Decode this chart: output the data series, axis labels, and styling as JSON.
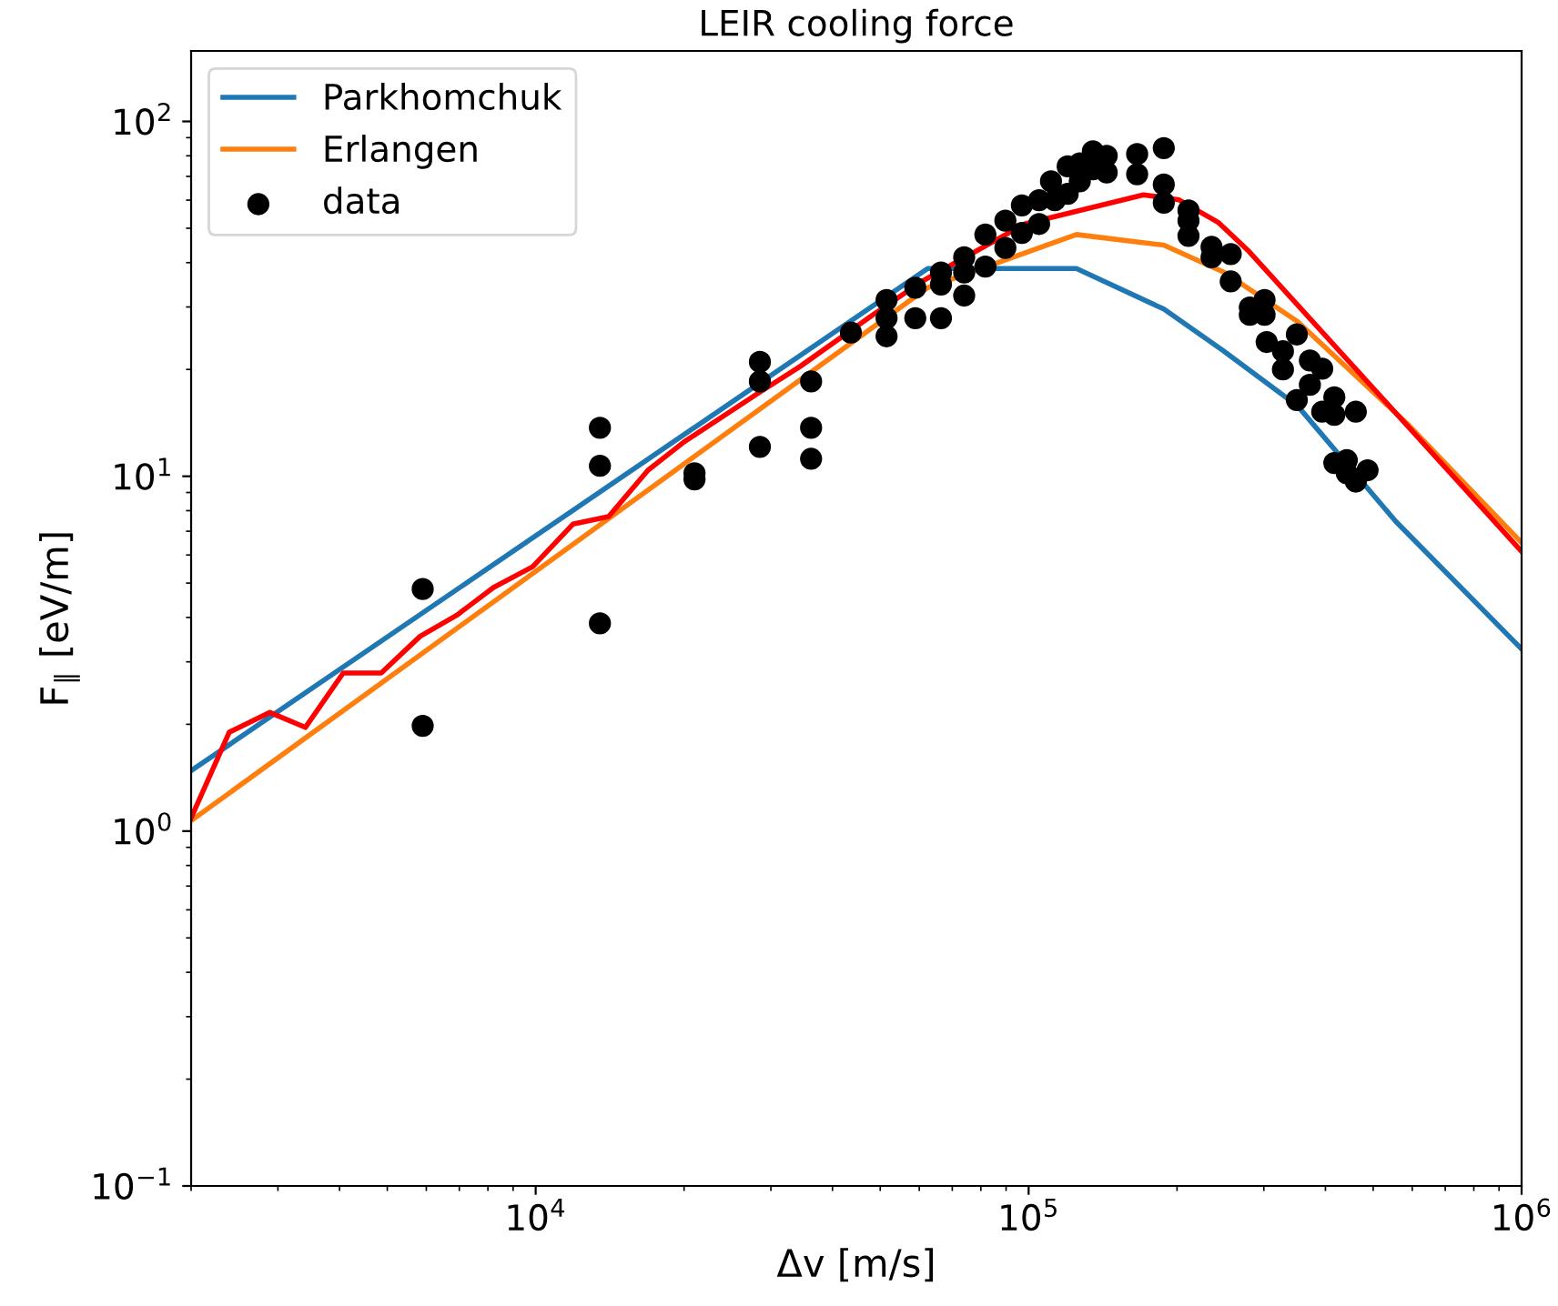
{
  "chart_data": {
    "type": "line",
    "title": "LEIR cooling force",
    "xlabel": "Δv [m/s]",
    "ylabel": "F$_{∥}$ [eV/m]",
    "log": "xy",
    "xlim": [
      2000,
      1000000
    ],
    "ylim": [
      0.1,
      158
    ],
    "xticks": [
      {
        "value": 10000,
        "label": "10$^{4}$"
      },
      {
        "value": 100000,
        "label": "10$^{5}$"
      },
      {
        "value": 1000000,
        "label": "10$^{6}$"
      }
    ],
    "yticks": [
      {
        "value": 0.1,
        "label": "10$^{−1}$"
      },
      {
        "value": 1,
        "label": "10$^{0}$"
      },
      {
        "value": 10,
        "label": "10$^{1}$"
      },
      {
        "value": 100,
        "label": "10$^{2}$"
      }
    ],
    "legend": "top left",
    "grid": false,
    "series": [
      {
        "name": "Parkhomchuk",
        "color": "#1f77b4",
        "x": [
          2000,
          62400,
          125000,
          188000,
          248000,
          351000,
          556000,
          1000000
        ],
        "values": [
          1.48,
          38.5,
          38.5,
          29.6,
          22.6,
          15.8,
          7.45,
          3.26
        ]
      },
      {
        "name": "Erlangen",
        "color": "#ff7f0e",
        "x": [
          2000,
          62400,
          125000,
          188000,
          250000,
          351000,
          585000,
          1000000
        ],
        "values": [
          1.07,
          34,
          48,
          44.8,
          37.5,
          27.3,
          14.1,
          6.5
        ]
      },
      {
        "color": "#ff0000",
        "x": [
          2000,
          2390,
          2890,
          3410,
          4070,
          4860,
          5830,
          6920,
          8210,
          9860,
          11900,
          14060,
          16900,
          20000,
          28200,
          34400,
          48300,
          60700,
          98200,
          171000,
          202000,
          243000,
          280000,
          1000000
        ],
        "values": [
          1.09,
          1.9,
          2.16,
          1.96,
          2.79,
          2.79,
          3.54,
          4.06,
          4.86,
          5.56,
          7.33,
          7.7,
          10.4,
          12.5,
          17.1,
          20.4,
          28.5,
          35.4,
          51.4,
          62.1,
          60.1,
          51.8,
          43,
          6.14
        ]
      },
      {
        "name": "data",
        "type": "scatter",
        "color": "#000000",
        "marker": "circle",
        "x": [
          5900,
          5900,
          13500,
          13500,
          13500,
          21000,
          21000,
          28500,
          28500,
          28500,
          36200,
          36200,
          36200,
          43600,
          51500,
          51500,
          51500,
          58900,
          58900,
          66400,
          66400,
          66400,
          74000,
          74000,
          74000,
          81700,
          81700,
          89700,
          89700,
          96900,
          96900,
          105000,
          105000,
          111000,
          113000,
          120000,
          120000,
          127000,
          127000,
          135000,
          135000,
          144000,
          144000,
          166000,
          166000,
          188000,
          188000,
          188000,
          211000,
          211000,
          211000,
          235000,
          235000,
          257000,
          257000,
          281000,
          281000,
          301000,
          301000,
          304000,
          328000,
          328000,
          350000,
          350000,
          372000,
          372000,
          394000,
          394000,
          417000,
          417000,
          461000,
          417000,
          442000,
          461000,
          487000,
          442000
        ],
        "values": [
          4.81,
          1.98,
          13.7,
          10.7,
          3.85,
          10.2,
          9.8,
          21.0,
          18.5,
          12.1,
          18.5,
          13.7,
          11.2,
          25.4,
          31.4,
          27.9,
          24.8,
          34,
          27.9,
          37.5,
          34.7,
          27.9,
          41.4,
          37.5,
          32.3,
          48,
          39,
          52.5,
          44,
          58,
          48.5,
          60,
          51.4,
          67.8,
          60,
          74.7,
          62.5,
          76.2,
          67.8,
          82.4,
          73.3,
          80,
          71.8,
          80.9,
          71,
          84.1,
          66.4,
          59,
          56.1,
          52.5,
          47.6,
          44.3,
          41.4,
          42.3,
          35.4,
          29.9,
          28.5,
          31.4,
          28.5,
          23.9,
          22.5,
          20,
          25.1,
          16.4,
          21.2,
          18.1,
          20.1,
          15.2,
          16.7,
          14.9,
          15.2,
          10.9,
          10.2,
          9.66,
          10.4,
          11.1
        ]
      }
    ]
  }
}
